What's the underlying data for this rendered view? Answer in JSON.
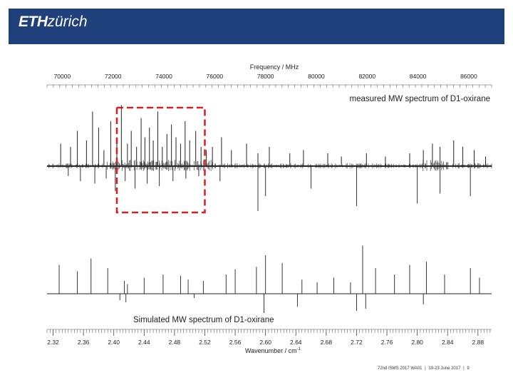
{
  "header": {
    "logo_bold": "ETH",
    "logo_light": "zürich",
    "background": "#1f407a"
  },
  "chart_data": {
    "type": "line",
    "top_axis": {
      "label": "Frequency / MHz",
      "range": [
        69400,
        86900
      ],
      "ticks": [
        70000,
        72000,
        74000,
        76000,
        78000,
        80000,
        82000,
        84000,
        86000
      ]
    },
    "bottom_axis": {
      "label": "Wavenumber / cm",
      "label_superscript": "-1",
      "range": [
        2.312,
        2.898
      ],
      "ticks": [
        "2.32",
        "2.36",
        "2.40",
        "2.44",
        "2.48",
        "2.52",
        "2.56",
        "2.60",
        "2.64",
        "2.68",
        "2.72",
        "2.76",
        "2.80",
        "2.84",
        "2.88"
      ]
    },
    "series": [
      {
        "name": "measured MW spectrum of D1-oxirane",
        "peaks_up": [
          {
            "x": 2.33,
            "h": 0.35
          },
          {
            "x": 2.343,
            "h": 0.3
          },
          {
            "x": 2.352,
            "h": 0.55
          },
          {
            "x": 2.364,
            "h": 0.4
          },
          {
            "x": 2.372,
            "h": 0.85
          },
          {
            "x": 2.38,
            "h": 0.6
          },
          {
            "x": 2.387,
            "h": 0.25
          },
          {
            "x": 2.396,
            "h": 0.7
          },
          {
            "x": 2.404,
            "h": 0.45
          },
          {
            "x": 2.41,
            "h": 0.95
          },
          {
            "x": 2.418,
            "h": 0.35
          },
          {
            "x": 2.423,
            "h": 0.55
          },
          {
            "x": 2.43,
            "h": 0.3
          },
          {
            "x": 2.436,
            "h": 0.75
          },
          {
            "x": 2.441,
            "h": 0.45
          },
          {
            "x": 2.447,
            "h": 0.6
          },
          {
            "x": 2.452,
            "h": 0.4
          },
          {
            "x": 2.458,
            "h": 0.85
          },
          {
            "x": 2.464,
            "h": 0.3
          },
          {
            "x": 2.47,
            "h": 0.5
          },
          {
            "x": 2.476,
            "h": 0.65
          },
          {
            "x": 2.482,
            "h": 0.45
          },
          {
            "x": 2.488,
            "h": 0.35
          },
          {
            "x": 2.494,
            "h": 0.7
          },
          {
            "x": 2.5,
            "h": 0.4
          },
          {
            "x": 2.508,
            "h": 0.55
          },
          {
            "x": 2.515,
            "h": 0.3
          },
          {
            "x": 2.522,
            "h": 0.25
          },
          {
            "x": 2.53,
            "h": 0.3
          },
          {
            "x": 2.542,
            "h": 0.45
          },
          {
            "x": 2.555,
            "h": 0.25
          },
          {
            "x": 2.575,
            "h": 0.35
          },
          {
            "x": 2.59,
            "h": 0.2
          },
          {
            "x": 2.605,
            "h": 0.3
          },
          {
            "x": 2.632,
            "h": 0.2
          },
          {
            "x": 2.65,
            "h": 0.25
          },
          {
            "x": 2.682,
            "h": 0.2
          },
          {
            "x": 2.7,
            "h": 0.15
          },
          {
            "x": 2.733,
            "h": 0.2
          },
          {
            "x": 2.758,
            "h": 0.15
          },
          {
            "x": 2.79,
            "h": 0.2
          },
          {
            "x": 2.808,
            "h": 0.25
          },
          {
            "x": 2.82,
            "h": 0.35
          },
          {
            "x": 2.83,
            "h": 0.3
          },
          {
            "x": 2.848,
            "h": 0.4
          },
          {
            "x": 2.86,
            "h": 0.3
          },
          {
            "x": 2.875,
            "h": 0.25
          },
          {
            "x": 2.89,
            "h": 0.15
          }
        ],
        "peaks_down": [
          {
            "x": 2.34,
            "h": 0.2
          },
          {
            "x": 2.356,
            "h": 0.3
          },
          {
            "x": 2.375,
            "h": 0.35
          },
          {
            "x": 2.39,
            "h": 0.25
          },
          {
            "x": 2.402,
            "h": 0.5
          },
          {
            "x": 2.415,
            "h": 0.3
          },
          {
            "x": 2.428,
            "h": 0.45
          },
          {
            "x": 2.444,
            "h": 0.35
          },
          {
            "x": 2.46,
            "h": 0.4
          },
          {
            "x": 2.478,
            "h": 0.3
          },
          {
            "x": 2.495,
            "h": 0.25
          },
          {
            "x": 2.512,
            "h": 0.2
          },
          {
            "x": 2.54,
            "h": 0.3
          },
          {
            "x": 2.59,
            "h": 0.9
          },
          {
            "x": 2.6,
            "h": 0.6
          },
          {
            "x": 2.66,
            "h": 0.45
          },
          {
            "x": 2.72,
            "h": 0.8
          },
          {
            "x": 2.8,
            "h": 0.75
          },
          {
            "x": 2.83,
            "h": 0.55
          },
          {
            "x": 2.87,
            "h": 0.6
          }
        ]
      },
      {
        "name": "Simulated MW spectrum of D1-oxirane",
        "sticks": [
          {
            "x": 2.328,
            "h": 0.45
          },
          {
            "x": 2.352,
            "h": 0.35
          },
          {
            "x": 2.37,
            "h": 0.55
          },
          {
            "x": 2.392,
            "h": 0.4
          },
          {
            "x": 2.414,
            "h": 0.2
          },
          {
            "x": 2.418,
            "h": 0.15
          },
          {
            "x": 2.44,
            "h": 0.25
          },
          {
            "x": 2.465,
            "h": 0.3
          },
          {
            "x": 2.488,
            "h": 0.28
          },
          {
            "x": 2.498,
            "h": 0.22
          },
          {
            "x": 2.518,
            "h": 0.2
          },
          {
            "x": 2.548,
            "h": 0.3
          },
          {
            "x": 2.56,
            "h": 0.38
          },
          {
            "x": 2.588,
            "h": 0.42
          },
          {
            "x": 2.6,
            "h": 0.6
          },
          {
            "x": 2.622,
            "h": 0.48
          },
          {
            "x": 2.648,
            "h": 0.22
          },
          {
            "x": 2.668,
            "h": 0.18
          },
          {
            "x": 2.69,
            "h": 0.25
          },
          {
            "x": 2.712,
            "h": 0.18
          },
          {
            "x": 2.728,
            "h": 0.75
          },
          {
            "x": 2.745,
            "h": 0.4
          },
          {
            "x": 2.77,
            "h": 0.3
          },
          {
            "x": 2.79,
            "h": 0.45
          },
          {
            "x": 2.812,
            "h": 0.5
          },
          {
            "x": 2.836,
            "h": 0.3
          },
          {
            "x": 2.87,
            "h": 0.4
          },
          {
            "x": 2.882,
            "h": 0.25
          }
        ],
        "sticks_down": [
          {
            "x": 2.408,
            "h": 0.15
          },
          {
            "x": 2.416,
            "h": 0.2
          },
          {
            "x": 2.506,
            "h": 0.1
          },
          {
            "x": 2.598,
            "h": 0.45
          },
          {
            "x": 2.642,
            "h": 0.3
          },
          {
            "x": 2.72,
            "h": 0.4
          },
          {
            "x": 2.732,
            "h": 0.35
          },
          {
            "x": 2.808,
            "h": 0.25
          }
        ]
      }
    ],
    "annotation": {
      "type": "dashed-rectangle",
      "color": "#d42020",
      "x_range": [
        2.404,
        2.52
      ]
    }
  },
  "footer": {
    "event": "72nd ISMS 2017 WA01",
    "sep1": "|",
    "date": "19-23 June 2017",
    "sep2": "|",
    "page": "9"
  }
}
